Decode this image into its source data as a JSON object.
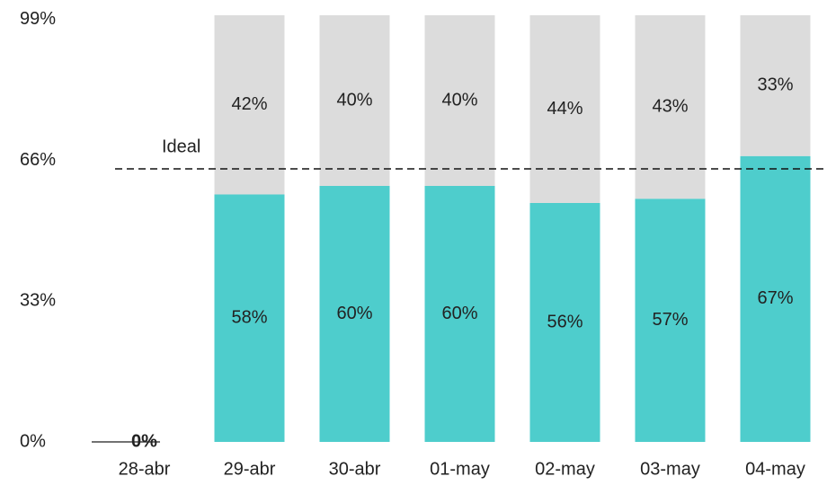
{
  "chart_data": {
    "type": "stacked_bar",
    "categories": [
      "28-abr",
      "29-abr",
      "30-abr",
      "01-may",
      "02-may",
      "03-may",
      "04-may"
    ],
    "series": [
      {
        "color": "#4ecdcc",
        "values": [
          0,
          58,
          60,
          60,
          56,
          57,
          67
        ],
        "value_labels": [
          "0%",
          "58%",
          "60%",
          "60%",
          "56%",
          "57%",
          "67%"
        ]
      },
      {
        "color": "#dcdcdc",
        "values": [
          null,
          42,
          40,
          40,
          44,
          43,
          33
        ],
        "value_labels": [
          null,
          "42%",
          "40%",
          "40%",
          "44%",
          "43%",
          "33%"
        ]
      }
    ],
    "ylim": [
      0,
      100
    ],
    "yticks": [
      {
        "value": 0,
        "label": "0%"
      },
      {
        "value": 33,
        "label": "33%"
      },
      {
        "value": 66,
        "label": "66%"
      },
      {
        "value": 99,
        "label": "99%"
      }
    ],
    "reference_line": {
      "label": "Ideal",
      "value": 64
    }
  }
}
